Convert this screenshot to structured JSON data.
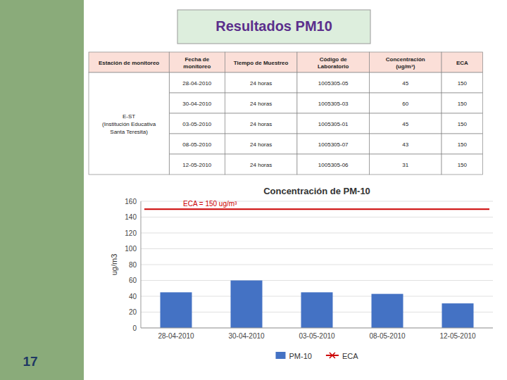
{
  "title": "Resultados PM10",
  "page_number": "17",
  "table": {
    "headers": [
      "Estación de monitoreo",
      "Fecha de\nmonitoreo",
      "Tiempo de Muestreo",
      "Código de\nLaboratorio",
      "Concentración\n(ug/m³)",
      "ECA"
    ],
    "station": "E-ST\n(Institución Educativa\nSanta Teresita)",
    "rows": [
      [
        "28-04-2010",
        "24 horas",
        "1005305-05",
        "45",
        "150"
      ],
      [
        "30-04-2010",
        "24 horas",
        "1005305-03",
        "60",
        "150"
      ],
      [
        "03-05-2010",
        "24 horas",
        "1005305-01",
        "45",
        "150"
      ],
      [
        "08-05-2010",
        "24 horas",
        "1005305-07",
        "43",
        "150"
      ],
      [
        "12-05-2010",
        "24 horas",
        "1005305-06",
        "31",
        "150"
      ]
    ]
  },
  "chart_data": {
    "type": "bar",
    "title": "Concentración de PM-10",
    "ylabel": "ug/m3",
    "categories": [
      "28-04-2010",
      "30-04-2010",
      "03-05-2010",
      "08-05-2010",
      "12-05-2010"
    ],
    "series": [
      {
        "name": "PM-10",
        "color": "#4472C4",
        "values": [
          45,
          60,
          45,
          43,
          31
        ]
      }
    ],
    "reference_lines": [
      {
        "name": "ECA",
        "value": 150,
        "color": "#CC0000",
        "label": "ECA = 150 ug/m³"
      }
    ],
    "ylim": [
      0,
      160
    ],
    "yticks": [
      0,
      20,
      40,
      60,
      80,
      100,
      120,
      140,
      160
    ],
    "grid": true,
    "legend": "bottom"
  }
}
